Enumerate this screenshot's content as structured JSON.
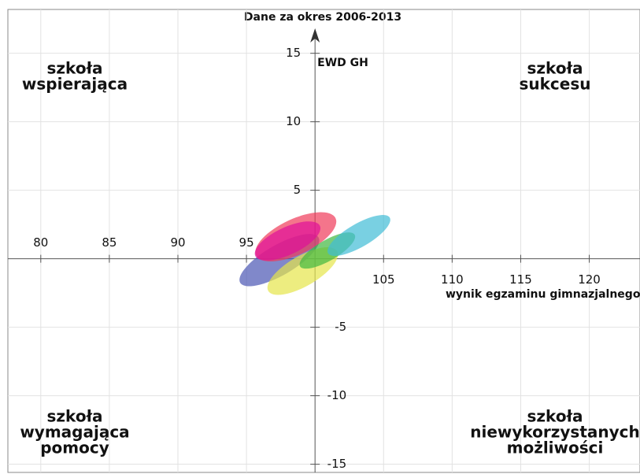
{
  "chart_data": {
    "type": "ellipse",
    "title": "Dane za okres 2006-2013",
    "x_label": "wynik egzaminu gimnazjalnego",
    "y_label": "EWD GH",
    "quadrants": {
      "top_left": [
        "szkoła",
        "wspierająca"
      ],
      "top_right": [
        "szkoła",
        "sukcesu"
      ],
      "bottom_left": [
        "szkoła",
        "wymagająca",
        "pomocy"
      ],
      "bottom_right": [
        "szkoła",
        "niewykorzystanych",
        "możliwości"
      ]
    },
    "xlim": [
      77.6,
      123.7
    ],
    "ylim": [
      -15.6,
      18.2
    ],
    "xticks": [
      80,
      85,
      90,
      95,
      105,
      110,
      115,
      120
    ],
    "yticks": [
      15,
      10,
      5,
      -5,
      -10,
      -15
    ],
    "x_origin": 100,
    "y_origin": 0,
    "grid": true,
    "ellipses": [
      {
        "color": "#4a55b4",
        "x": 97.4,
        "y": -0.1,
        "rx": 3.3,
        "ry": 1.1,
        "angle": 30
      },
      {
        "color": "#f03a5a",
        "x": 98.6,
        "y": 1.6,
        "rx": 3.2,
        "ry": 1.3,
        "angle": 25
      },
      {
        "color": "#e0109a",
        "x": 98.0,
        "y": 1.3,
        "rx": 2.6,
        "ry": 1.0,
        "angle": 25
      },
      {
        "color": "#e6e64a",
        "x": 99.1,
        "y": -0.9,
        "rx": 2.9,
        "ry": 1.1,
        "angle": 30
      },
      {
        "color": "#40b840",
        "x": 100.9,
        "y": 0.6,
        "rx": 2.3,
        "ry": 0.75,
        "angle": 30
      },
      {
        "color": "#40bcd6",
        "x": 103.2,
        "y": 1.7,
        "rx": 2.6,
        "ry": 0.85,
        "angle": 30
      }
    ]
  }
}
